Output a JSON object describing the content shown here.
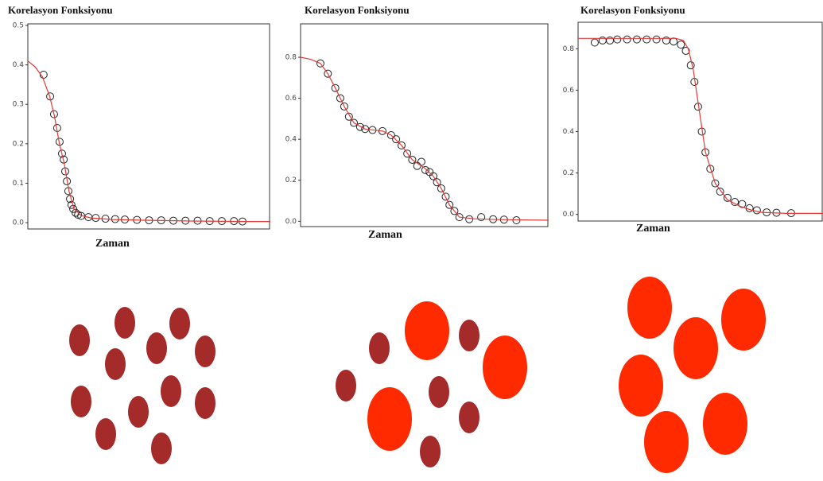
{
  "chart_data": [
    {
      "type": "line",
      "title": "Korelasyon Fonksiyonu",
      "x_label": "Zaman",
      "xlim": [
        0,
        100
      ],
      "ylim": [
        -0.016,
        0.504
      ],
      "yticks": [
        {
          "value": 0,
          "label": "0.0"
        },
        0.1,
        0.2,
        0.3,
        0.4,
        0.5
      ],
      "series": [
        {
          "style": "markers",
          "color": "#222222",
          "x": [
            6.5,
            9.2,
            10.8,
            12.1,
            13.1,
            14.1,
            14.8,
            15.4,
            16.1,
            16.7,
            17.4,
            18,
            18.7,
            19.7,
            20.7,
            22,
            25,
            28,
            32,
            36,
            40,
            45,
            50,
            55,
            60,
            65,
            70,
            75,
            80,
            85,
            88.5
          ],
          "values": [
            0.375,
            0.32,
            0.275,
            0.24,
            0.205,
            0.175,
            0.16,
            0.13,
            0.105,
            0.08,
            0.06,
            0.045,
            0.035,
            0.025,
            0.02,
            0.017,
            0.014,
            0.012,
            0.01,
            0.009,
            0.008,
            0.007,
            0.006,
            0.006,
            0.005,
            0.005,
            0.005,
            0.004,
            0.004,
            0.004,
            0.003
          ]
        },
        {
          "style": "line",
          "color": "#e53935",
          "x": [
            0,
            3,
            6,
            9,
            11,
            13,
            15,
            17,
            19,
            22,
            26,
            35,
            50,
            70,
            90,
            100
          ],
          "values": [
            0.41,
            0.395,
            0.37,
            0.32,
            0.27,
            0.2,
            0.15,
            0.08,
            0.035,
            0.018,
            0.012,
            0.008,
            0.006,
            0.004,
            0.003,
            0.003
          ]
        }
      ]
    },
    {
      "type": "line",
      "title": "Korelasyon Fonksiyonu",
      "x_label": "Zaman",
      "xlim": [
        0,
        100
      ],
      "ylim": [
        -0.026,
        0.963
      ],
      "yticks": [
        {
          "value": 0,
          "label": "0.0"
        },
        0.2,
        0.4,
        0.6,
        0.8
      ],
      "series": [
        {
          "style": "markers",
          "color": "#222222",
          "x": [
            8,
            11,
            14,
            16,
            17.6,
            19.5,
            21.5,
            24,
            26,
            29,
            33,
            36.5,
            38.5,
            40.7,
            43,
            45,
            47,
            48.7,
            50.3,
            52,
            53.5,
            55,
            56.7,
            58.5,
            60,
            62,
            64,
            68,
            72.8,
            77.6,
            82,
            87
          ],
          "values": [
            0.77,
            0.72,
            0.65,
            0.6,
            0.56,
            0.51,
            0.48,
            0.46,
            0.45,
            0.445,
            0.44,
            0.42,
            0.4,
            0.37,
            0.33,
            0.3,
            0.27,
            0.29,
            0.25,
            0.24,
            0.22,
            0.19,
            0.16,
            0.12,
            0.08,
            0.05,
            0.02,
            0.01,
            0.02,
            0.01,
            0.008,
            0.005
          ]
        },
        {
          "style": "line",
          "color": "#e53935",
          "x": [
            0,
            4,
            8,
            11,
            14,
            17.6,
            21.5,
            26,
            33,
            36.5,
            40.7,
            45,
            50,
            53.5,
            56.7,
            60,
            64,
            70,
            80,
            100
          ],
          "values": [
            0.8,
            0.79,
            0.77,
            0.72,
            0.65,
            0.56,
            0.48,
            0.45,
            0.44,
            0.42,
            0.37,
            0.3,
            0.26,
            0.22,
            0.16,
            0.08,
            0.02,
            0.012,
            0.008,
            0.005
          ]
        }
      ]
    },
    {
      "type": "line",
      "title": "Korelasyon Fonksiyonu",
      "x_label": "Zaman",
      "xlim": [
        0,
        100
      ],
      "ylim": [
        -0.032,
        0.928
      ],
      "yticks": [
        {
          "value": 0,
          "label": "0.0"
        },
        0.2,
        0.4,
        0.6,
        0.8
      ],
      "series": [
        {
          "style": "markers",
          "color": "#222222",
          "x": [
            6.8,
            10,
            13,
            16,
            20,
            24,
            28,
            32,
            36,
            39,
            42,
            44,
            46,
            47.5,
            49,
            50.5,
            52,
            54,
            56,
            58,
            61,
            64,
            67,
            70,
            73,
            77,
            81,
            87
          ],
          "values": [
            0.83,
            0.84,
            0.84,
            0.845,
            0.845,
            0.845,
            0.845,
            0.845,
            0.84,
            0.835,
            0.82,
            0.79,
            0.72,
            0.64,
            0.52,
            0.4,
            0.3,
            0.22,
            0.15,
            0.11,
            0.08,
            0.06,
            0.05,
            0.03,
            0.02,
            0.01,
            0.008,
            0.006
          ]
        },
        {
          "style": "line",
          "color": "#e53935",
          "x": [
            0,
            40,
            43,
            45,
            47,
            49.5,
            52,
            56,
            61,
            66,
            71,
            75,
            85,
            100
          ],
          "values": [
            0.85,
            0.85,
            0.84,
            0.8,
            0.7,
            0.5,
            0.3,
            0.15,
            0.07,
            0.04,
            0.02,
            0.01,
            0.005,
            0.005
          ]
        }
      ]
    }
  ]
}
